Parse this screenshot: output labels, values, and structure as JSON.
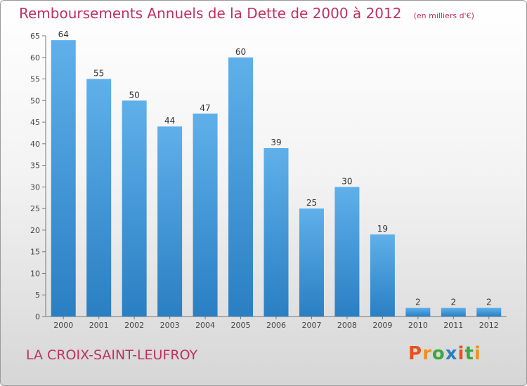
{
  "header": {
    "title": "Remboursements Annuels de la Dette de 2000 à 2012",
    "unit": "(en milliers d'€)"
  },
  "footer": {
    "location": "LA CROIX-SAINT-LEUFROY",
    "brand": "Proxiti"
  },
  "colors": {
    "title": "#c0305e",
    "bar_top": "#5fb0ea",
    "bar_bottom": "#2a7fc3",
    "brand_letters": [
      "#e8501e",
      "#f09020",
      "#3da73d",
      "#2a7fc3",
      "#e8501e",
      "#3da73d",
      "#f09020"
    ]
  },
  "chart_data": {
    "type": "bar",
    "categories": [
      "2000",
      "2001",
      "2002",
      "2003",
      "2004",
      "2005",
      "2006",
      "2007",
      "2008",
      "2009",
      "2010",
      "2011",
      "2012"
    ],
    "values": [
      64,
      55,
      50,
      44,
      47,
      60,
      39,
      25,
      30,
      19,
      2,
      2,
      2
    ],
    "ylim": [
      0,
      65
    ],
    "yticks": [
      0,
      5,
      10,
      15,
      20,
      25,
      30,
      35,
      40,
      45,
      50,
      55,
      60,
      65
    ],
    "grid": false,
    "data_labels": true
  }
}
